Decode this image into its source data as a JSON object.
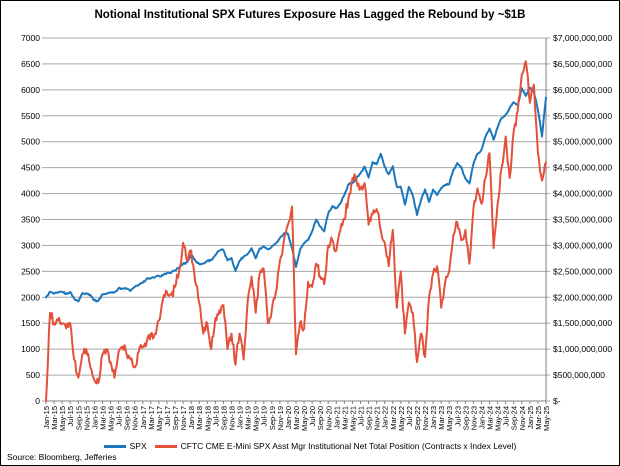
{
  "header": {
    "title": "Notional Institutional SPX Futures Exposure Has Lagged the Rebound by ~$1B"
  },
  "footer": {
    "source": "Source: Bloomberg, Jefferies"
  },
  "legend": {
    "position": "bottom",
    "items": [
      {
        "label": "SPX",
        "color": "#1B77BC"
      },
      {
        "label": "CFTC CME E-Mini SPX Asst Mgr Institutional Net Total Position (Contracts x Index Level)",
        "color": "#E3513B"
      }
    ]
  },
  "colors": {
    "spx_line": "#1B77BC",
    "cftc_line": "#E3513B",
    "gridline": "#A6A6A6",
    "axis_line": "#808080",
    "text": "#000000"
  },
  "chart_data": {
    "type": "line",
    "title": "Notional Institutional SPX Futures Exposure Has Lagged the Rebound by ~$1B",
    "grid": true,
    "legend_position": "bottom",
    "x_span": "monthly, Jan-2015 through May-2025 (ticks every 2 months)",
    "x_tick_labels": [
      "Jan-15",
      "Mar-15",
      "May-15",
      "Jul-15",
      "Sep-15",
      "Nov-15",
      "Jan-16",
      "Mar-16",
      "May-16",
      "Jul-16",
      "Sep-16",
      "Nov-16",
      "Jan-17",
      "Mar-17",
      "May-17",
      "Jul-17",
      "Sep-17",
      "Nov-17",
      "Jan-18",
      "Mar-18",
      "May-18",
      "Jul-18",
      "Sep-18",
      "Nov-18",
      "Jan-19",
      "Mar-19",
      "May-19",
      "Jul-19",
      "Sep-19",
      "Nov-19",
      "Jan-20",
      "Mar-20",
      "May-20",
      "Jul-20",
      "Sep-20",
      "Nov-20",
      "Jan-21",
      "Mar-21",
      "May-21",
      "Jul-21",
      "Sep-21",
      "Nov-21",
      "Jan-22",
      "Mar-22",
      "May-22",
      "Jul-22",
      "Sep-22",
      "Nov-22",
      "Jan-23",
      "Mar-23",
      "May-23",
      "Jul-23",
      "Sep-23",
      "Nov-23",
      "Jan-24",
      "Mar-24",
      "May-24",
      "Jul-24",
      "Sep-24",
      "Nov-24",
      "Jan-25",
      "Mar-25",
      "May-25"
    ],
    "left_axis": {
      "min": 0,
      "max": 7000,
      "step": 500,
      "tick_labels": [
        "7000",
        "6500",
        "6000",
        "5500",
        "5000",
        "4500",
        "4000",
        "3500",
        "3000",
        "2500",
        "2000",
        "1500",
        "1000",
        "500",
        "0"
      ]
    },
    "right_axis": {
      "min": 0,
      "max": 7000000000,
      "step": 500000000,
      "tick_labels": [
        "$7,000,000,000",
        "$6,500,000,000",
        "$6,000,000,000",
        "$5,500,000,000",
        "$5,000,000,000",
        "$4,500,000,000",
        "$4,000,000,000",
        "$3,500,000,000",
        "$3,000,000,000",
        "$2,500,000,000",
        "$2,000,000,000",
        "$1,500,000,000",
        "$1,000,000,000",
        "$500,000,000",
        "$-"
      ]
    },
    "series": [
      {
        "name": "SPX",
        "axis": "left",
        "color": "#1B77BC",
        "values": [
          1995,
          2105,
          2068,
          2086,
          2107,
          2063,
          2104,
          1972,
          1920,
          2079,
          2080,
          2044,
          1940,
          1932,
          2060,
          2065,
          2097,
          2099,
          2174,
          2171,
          2168,
          2126,
          2199,
          2239,
          2279,
          2364,
          2363,
          2384,
          2412,
          2423,
          2470,
          2472,
          2519,
          2575,
          2648,
          2674,
          2824,
          2714,
          2641,
          2648,
          2705,
          2718,
          2816,
          2902,
          2914,
          2712,
          2760,
          2507,
          2704,
          2784,
          2834,
          2946,
          2752,
          2942,
          2980,
          2926,
          2977,
          3038,
          3141,
          3231,
          3226,
          2954,
          2585,
          2912,
          3044,
          3100,
          3271,
          3500,
          3363,
          3270,
          3622,
          3756,
          3714,
          3811,
          3973,
          4181,
          4204,
          4298,
          4395,
          4523,
          4308,
          4605,
          4567,
          4766,
          4516,
          4374,
          4530,
          4132,
          4132,
          3785,
          4130,
          3955,
          3586,
          3872,
          4080,
          3840,
          4077,
          3970,
          4109,
          4169,
          4180,
          4450,
          4589,
          4508,
          4288,
          4194,
          4568,
          4770,
          4846,
          5096,
          5254,
          5036,
          5278,
          5460,
          5522,
          5648,
          5762,
          5705,
          6032,
          5882,
          6041,
          5955,
          5612,
          5100,
          5850
        ]
      },
      {
        "name": "CFTC CME E-Mini SPX Asst Mgr Institutional Net Total Position (Contracts x Index Level)",
        "axis": "right",
        "units_note": "plotted value x $1,000,000 on right axis",
        "color": "#E3513B",
        "values": [
          0,
          1700,
          1500,
          1550,
          1500,
          1400,
          1500,
          800,
          450,
          900,
          1000,
          650,
          400,
          350,
          900,
          1000,
          750,
          450,
          950,
          1050,
          900,
          800,
          650,
          950,
          1050,
          1150,
          1300,
          1300,
          1550,
          1950,
          2100,
          2050,
          2200,
          2500,
          3050,
          2700,
          2900,
          2300,
          1900,
          1300,
          1500,
          1000,
          1600,
          1750,
          1850,
          1000,
          1300,
          700,
          1300,
          800,
          1900,
          2400,
          1700,
          2450,
          2550,
          1500,
          1750,
          2100,
          2700,
          3100,
          3400,
          3750,
          900,
          1500,
          1400,
          2300,
          2200,
          2650,
          2400,
          2250,
          3000,
          3100,
          2900,
          3300,
          3500,
          3900,
          4300,
          4250,
          4100,
          4200,
          3400,
          3600,
          3700,
          3300,
          3050,
          2600,
          3300,
          1800,
          2500,
          1300,
          1900,
          1700,
          750,
          1300,
          850,
          2000,
          2450,
          2600,
          1800,
          2300,
          2500,
          3200,
          3450,
          3100,
          3300,
          2650,
          3700,
          4100,
          3800,
          4300,
          4780,
          2950,
          3800,
          4500,
          5100,
          4300,
          5200,
          5600,
          6300,
          6550,
          5750,
          6100,
          4780,
          4250,
          4600
        ]
      }
    ]
  }
}
